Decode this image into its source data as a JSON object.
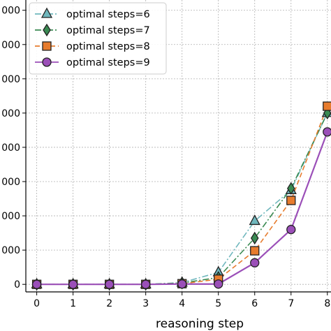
{
  "chart_data": {
    "type": "line",
    "title": "",
    "xlabel": "reasoning step",
    "ylabel": "",
    "x": [
      0,
      1,
      2,
      3,
      4,
      5,
      6,
      7,
      8
    ],
    "x_tick_labels": [
      "0",
      "1",
      "2",
      "3",
      "4",
      "5",
      "6",
      "7",
      "8"
    ],
    "y_tick_labels": [
      "0",
      "000",
      "000",
      "000",
      "000",
      "000",
      "000",
      "000",
      "000"
    ],
    "xlim": [
      -0.3,
      8.1
    ],
    "ylim": [
      -0.22,
      8.3
    ],
    "grid": true,
    "legend_position": "top-left",
    "series": [
      {
        "name": "optimal steps=6",
        "color": "#6fb7bd",
        "marker": "triangle",
        "line_style": "dashdot",
        "values": [
          0,
          0,
          0,
          0,
          0.05,
          0.35,
          1.85,
          2.75,
          5.0
        ]
      },
      {
        "name": "optimal steps=7",
        "color": "#3a8a52",
        "marker": "diamond",
        "line_style": "dashdot",
        "values": [
          0,
          0,
          0,
          0,
          0.04,
          0.2,
          1.35,
          2.8,
          5.0
        ]
      },
      {
        "name": "optimal steps=8",
        "color": "#e77c2e",
        "marker": "square",
        "line_style": "dashed",
        "values": [
          0,
          0,
          0,
          0,
          0.02,
          0.15,
          0.98,
          2.45,
          5.2
        ]
      },
      {
        "name": "optimal steps=9",
        "color": "#9b4fb8",
        "marker": "circle",
        "line_style": "solid",
        "values": [
          0,
          0,
          0,
          0,
          0.01,
          0.01,
          0.63,
          1.6,
          4.45
        ]
      }
    ]
  }
}
